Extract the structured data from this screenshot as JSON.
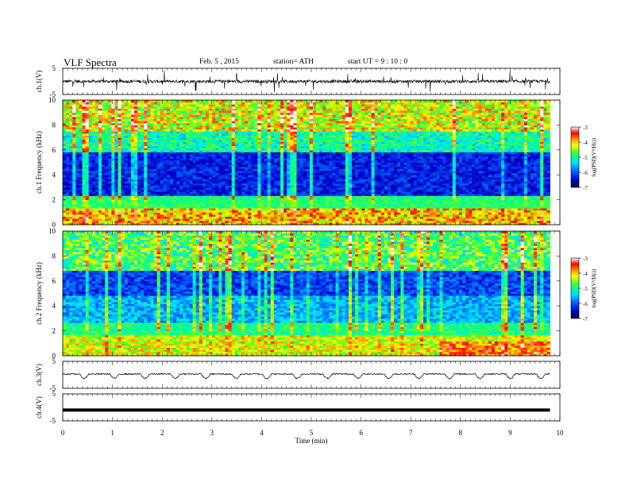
{
  "header": {
    "title": "VLF Spectra",
    "date": "Feb. 5 , 2015",
    "station": "station= ATH",
    "start": "start UT = 9 : 10 : 0"
  },
  "colors": {
    "colorbar": [
      "#000060",
      "#0000ff",
      "#00aaff",
      "#00ffb0",
      "#40ff40",
      "#c0ff00",
      "#ffff00",
      "#ff9900",
      "#ff0000",
      "#ffffff"
    ]
  },
  "chart_data": [
    {
      "type": "line",
      "panel": "ch1",
      "ylabel": "ch.1(V)",
      "ylim": [
        -5,
        5
      ],
      "y_ticks": [
        "5",
        "-5"
      ],
      "series": [
        {
          "x_range": [
            0,
            9.8
          ],
          "y_baseline": 0,
          "y_amplitude_approx": 1,
          "note_values": "noisy waveform near 0 V"
        }
      ]
    },
    {
      "type": "heatmap",
      "panel": "ch1-spectrogram",
      "ylabel": "ch.1  Frequency (kHz)",
      "ylim": [
        0,
        10
      ],
      "y_ticks": [
        "0",
        "2",
        "4",
        "6",
        "8",
        "10"
      ],
      "colorbar": {
        "label": "log(PSD(V²/Hz))",
        "range": [
          -7,
          -3
        ],
        "ticks": [
          "-3",
          "-4",
          "-5",
          "-6",
          "-7"
        ]
      }
    },
    {
      "type": "heatmap",
      "panel": "ch2-spectrogram",
      "ylabel": "ch.2  Frequency (kHz)",
      "ylim": [
        0,
        10
      ],
      "y_ticks": [
        "0",
        "2",
        "4",
        "6",
        "8",
        "10"
      ],
      "colorbar": {
        "label": "log(PSD(V²/Hz))",
        "range": [
          -7,
          -3
        ],
        "ticks": [
          "-3",
          "-4",
          "-5",
          "-6",
          "-7"
        ]
      }
    },
    {
      "type": "line",
      "panel": "ch3",
      "ylabel": "ch.3(V)",
      "ylim": [
        -5,
        5
      ],
      "y_ticks": [
        "5",
        "-5"
      ],
      "series": [
        {
          "x_range": [
            0,
            9.8
          ],
          "y_baseline": 0,
          "periodic_dips": 16
        }
      ]
    },
    {
      "type": "line",
      "panel": "ch4",
      "ylabel": "ch.4(V)",
      "ylim": [
        -5,
        5
      ],
      "y_ticks": [
        "5",
        "-5"
      ],
      "series": [
        {
          "x_range": [
            0,
            9.8
          ],
          "y_constant": -1
        }
      ]
    }
  ],
  "xaxis": {
    "label": "Time  (min)",
    "ticks": [
      "0",
      "1",
      "2",
      "3",
      "4",
      "5",
      "6",
      "7",
      "8",
      "9",
      "10"
    ],
    "range": [
      0,
      10
    ]
  }
}
